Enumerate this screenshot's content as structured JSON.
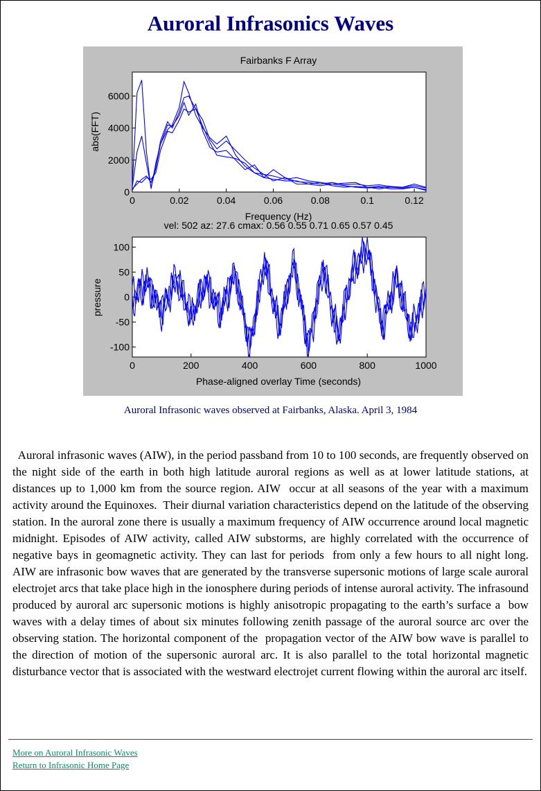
{
  "page": {
    "title": "Auroral Infrasonics Waves",
    "caption": "Auroral Infrasonic waves observed at Fairbanks, Alaska. April 3, 1984",
    "body": "  Auroral infrasonic waves (AIW), in the period passband from 10 to 100 seconds, are frequently observed on the night side of the earth in both high latitude auroral regions as well as at lower latitude stations, at distances up to 1,000 km from the source region. AIW  occur at all seasons of the year with a maximum activity around the Equinoxes.  Their diurnal variation characteristics depend on the latitude of the observing station. In the auroral zone there is usually a maximum frequency of AIW occurrence around local magnetic midnight. Episodes of AIW activity, called AIW substorms, are highly correlated with the occurrence of negative bays in geomagnetic activity. They can last for periods  from only a few hours to all night long. AIW are infrasonic bow waves that are generated by the transverse supersonic motions of large scale auroral electrojet arcs that take place high in the ionosphere during periods of intense auroral activity. The infrasound produced by auroral arc supersonic motions is highly anisotropic propagating to the earth’s surface a  bow waves with a delay times of about six minutes following zenith passage of the auroral source arc over the observing station. The horizontal component of the  propagation vector of the AIW bow wave is parallel to the direction of motion of the supersonic auroral arc. It is also parallel to the total horizontal magnetic disturbance vector that is associated with the westward electrojet current flowing within the auroral arc itself.",
    "links": [
      "More on Auroral Infrasonic Waves",
      "Return to Infrasonic Home Page"
    ]
  },
  "chart_data": [
    {
      "type": "line",
      "title": "Fairbanks F Array",
      "xlabel": "Frequency (Hz)",
      "ylabel": "abs(FFT)",
      "xlim": [
        0,
        0.125
      ],
      "ylim": [
        0,
        7500
      ],
      "xticks": [
        "0",
        "0.02",
        "0.04",
        "0.06",
        "0.08",
        "0.1",
        "0.12"
      ],
      "yticks": [
        "0",
        "2000",
        "4000",
        "6000"
      ],
      "color": "#0000ff",
      "series": [
        {
          "x": [
            0,
            0.002,
            0.004,
            0.006,
            0.008,
            0.01,
            0.012,
            0.015,
            0.017,
            0.02,
            0.022,
            0.024,
            0.027,
            0.03,
            0.033,
            0.036,
            0.04,
            0.044,
            0.048,
            0.052,
            0.056,
            0.06,
            0.065,
            0.07,
            0.075,
            0.08,
            0.085,
            0.09,
            0.095,
            0.1,
            0.105,
            0.11,
            0.115,
            0.12,
            0.125
          ],
          "y": [
            400,
            6200,
            7000,
            2500,
            200,
            1800,
            3000,
            3900,
            4200,
            5300,
            6900,
            6200,
            4800,
            4000,
            3400,
            3000,
            3500,
            2300,
            1600,
            1200,
            900,
            1400,
            900,
            650,
            600,
            500,
            600,
            450,
            500,
            400,
            450,
            350,
            300,
            400,
            250
          ]
        },
        {
          "x": [
            0,
            0.002,
            0.004,
            0.006,
            0.008,
            0.01,
            0.012,
            0.015,
            0.017,
            0.02,
            0.022,
            0.024,
            0.027,
            0.03,
            0.033,
            0.036,
            0.04,
            0.044,
            0.048,
            0.052,
            0.056,
            0.06,
            0.065,
            0.07,
            0.075,
            0.08,
            0.085,
            0.09,
            0.095,
            0.1,
            0.105,
            0.11,
            0.115,
            0.12,
            0.125
          ],
          "y": [
            300,
            2500,
            3500,
            1800,
            300,
            1500,
            3200,
            4400,
            4000,
            5000,
            5900,
            6000,
            5200,
            4500,
            3300,
            2700,
            3200,
            2600,
            2000,
            1500,
            1100,
            1000,
            800,
            900,
            700,
            600,
            500,
            550,
            600,
            300,
            350,
            300,
            300,
            500,
            300
          ]
        },
        {
          "x": [
            0,
            0.002,
            0.004,
            0.006,
            0.008,
            0.01,
            0.012,
            0.015,
            0.017,
            0.02,
            0.022,
            0.024,
            0.027,
            0.03,
            0.033,
            0.036,
            0.04,
            0.044,
            0.048,
            0.052,
            0.056,
            0.06,
            0.065,
            0.07,
            0.075,
            0.08,
            0.085,
            0.09,
            0.095,
            0.1,
            0.105,
            0.11,
            0.115,
            0.12,
            0.125
          ],
          "y": [
            200,
            500,
            800,
            1000,
            600,
            1500,
            3000,
            4200,
            4100,
            4800,
            5600,
            4800,
            5500,
            3800,
            2800,
            2500,
            2600,
            2000,
            1400,
            1700,
            900,
            800,
            700,
            700,
            500,
            600,
            400,
            300,
            350,
            300,
            200,
            300,
            250,
            300,
            100
          ]
        },
        {
          "x": [
            0,
            0.002,
            0.004,
            0.006,
            0.008,
            0.01,
            0.012,
            0.015,
            0.017,
            0.02,
            0.022,
            0.024,
            0.027,
            0.03,
            0.033,
            0.036,
            0.04,
            0.044,
            0.048,
            0.052,
            0.056,
            0.06,
            0.065,
            0.07,
            0.075,
            0.08,
            0.085,
            0.09,
            0.095,
            0.1,
            0.105,
            0.11,
            0.115,
            0.12,
            0.125
          ],
          "y": [
            100,
            700,
            600,
            900,
            800,
            1200,
            2600,
            3800,
            3700,
            4500,
            5200,
            5000,
            5200,
            4100,
            3100,
            2300,
            2200,
            2100,
            1800,
            1200,
            1100,
            700,
            900,
            500,
            500,
            400,
            500,
            400,
            300,
            250,
            300,
            200,
            200,
            300,
            150
          ]
        }
      ]
    },
    {
      "type": "line",
      "title": "vel: 502 az: 27.6 cmax: 0.56 0.55 0.71 0.65 0.57 0.45",
      "xlabel": "Phase-aligned overlay   Time (seconds)",
      "ylabel": "pressure",
      "xlim": [
        0,
        1000
      ],
      "ylim": [
        -120,
        120
      ],
      "xticks": [
        "0",
        "200",
        "400",
        "600",
        "800",
        "1000"
      ],
      "yticks": [
        "100",
        "50",
        "0",
        "-50",
        "-100"
      ],
      "color": "#0000ff",
      "series": [
        {
          "x": [
            0,
            50,
            100,
            150,
            200,
            250,
            300,
            350,
            400,
            450,
            500,
            550,
            600,
            650,
            700,
            750,
            800,
            850,
            900,
            950,
            1000
          ],
          "y": [
            10,
            40,
            -30,
            50,
            -40,
            30,
            -20,
            60,
            -110,
            80,
            -60,
            70,
            -100,
            60,
            -80,
            50,
            95,
            -70,
            40,
            -60,
            20
          ]
        },
        {
          "x": [
            0,
            50,
            100,
            150,
            200,
            250,
            300,
            350,
            400,
            450,
            500,
            550,
            600,
            650,
            700,
            750,
            800,
            850,
            900,
            950,
            1000
          ],
          "y": [
            -20,
            30,
            -40,
            30,
            -50,
            40,
            -30,
            40,
            -90,
            70,
            -50,
            60,
            -90,
            70,
            -70,
            60,
            110,
            -60,
            30,
            -70,
            10
          ]
        },
        {
          "x": [
            0,
            50,
            100,
            150,
            200,
            250,
            300,
            350,
            400,
            450,
            500,
            550,
            600,
            650,
            700,
            750,
            800,
            850,
            900,
            950,
            1000
          ],
          "y": [
            0,
            20,
            -20,
            40,
            -30,
            20,
            -40,
            50,
            -100,
            60,
            -70,
            80,
            -110,
            50,
            -90,
            40,
            90,
            -50,
            50,
            -80,
            0
          ]
        }
      ]
    }
  ]
}
